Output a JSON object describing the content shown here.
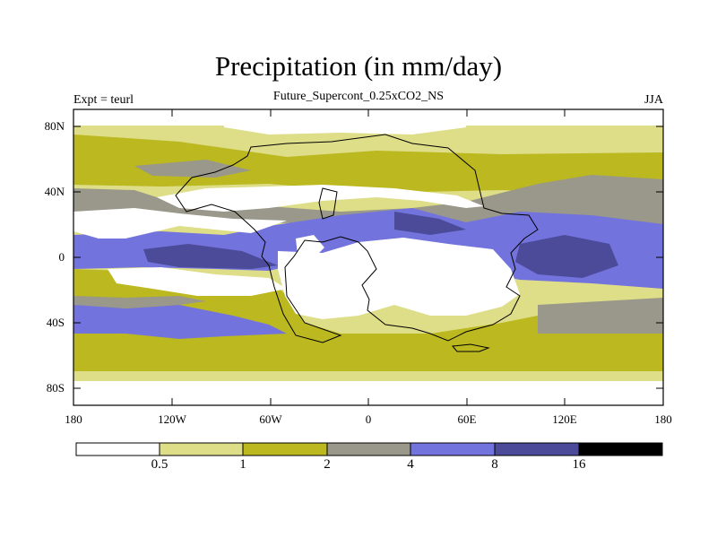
{
  "title": "Precipitation (in mm/day)",
  "subtitle": "Future_Supercont_0.25xCO2_NS",
  "left_label": "Expt = teurl",
  "right_label": "JJA",
  "colors": {
    "lt05": "#ffffff",
    "c05_1": "#dedd88",
    "c1_2": "#bcb81f",
    "c2_4": "#99988a",
    "c4_8": "#7373dd",
    "c8_16": "#4b4b99",
    "gt16": "#000000",
    "frame": "#000000"
  },
  "map": {
    "y_ticks": [
      "80N",
      "40N",
      "0",
      "40S",
      "80S"
    ],
    "x_ticks": [
      "180",
      "120W",
      "60W",
      "0",
      "60E",
      "120E",
      "180"
    ]
  },
  "colorbar": {
    "labels": [
      "0.5",
      "1",
      "2",
      "4",
      "8",
      "16"
    ]
  }
}
